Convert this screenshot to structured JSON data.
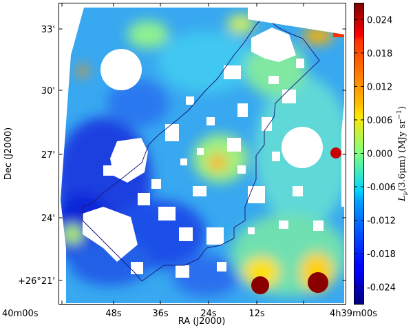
{
  "chart_data": {
    "type": "heatmap",
    "title": "",
    "xlabel": "RA (J2000)",
    "ylabel": "Dec (J2000)",
    "x_ticks": [
      "40m00s",
      "48s",
      "36s",
      "24s",
      "12s",
      "4h39m00s"
    ],
    "y_ticks": [
      "+26°21'",
      "24'",
      "27'",
      "30'",
      "33'"
    ],
    "colorbar": {
      "label": "L_ν(3.6μm) (MJy sr⁻¹)",
      "label_parts": {
        "main": "L",
        "sub": "ν",
        "rest": "(3.6μm)  (MJy sr",
        "sup": "−1",
        "close": ")"
      },
      "range": [
        -0.027,
        0.027
      ],
      "ticks": [
        "0.024",
        "0.018",
        "0.012",
        "0.006",
        "0.000",
        "-0.006",
        "-0.012",
        "-0.018",
        "-0.024"
      ],
      "colormap": "jet"
    },
    "polygon_color": "#1a1a7a",
    "grid": false
  }
}
